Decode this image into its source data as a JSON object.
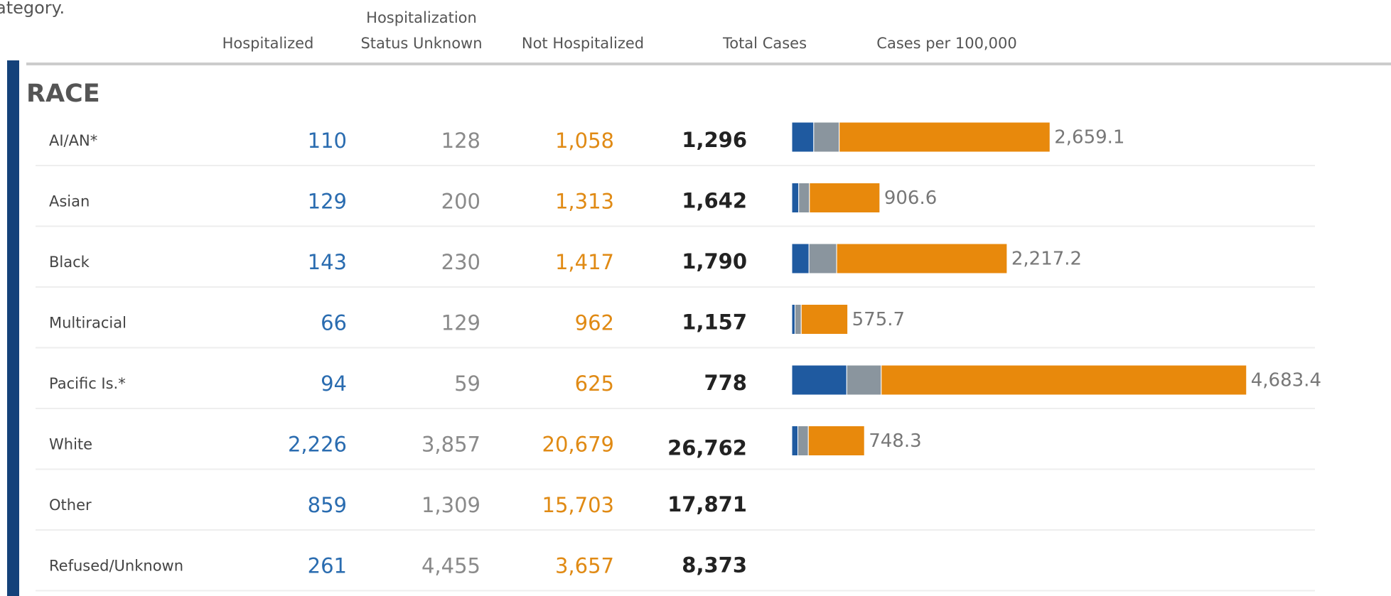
{
  "intro_text": "ategory.",
  "chart_data": {
    "type": "stacked-table-bar",
    "section": "RACE",
    "headers": [
      "Hospitalized",
      "Hospitalization Status Unknown",
      "Not Hospitalized",
      "Total Cases",
      "Cases per 100,000"
    ],
    "categories": [
      "AI/AN*",
      "Asian",
      "Black",
      "Multiracial",
      "Pacific Is.*",
      "White",
      "Other",
      "Refused/Unknown"
    ],
    "series": [
      {
        "name": "Hospitalized",
        "color": "#1f5aa0",
        "text_color": "#2a6cb0",
        "values": [
          110,
          129,
          143,
          66,
          94,
          2226,
          859,
          261
        ],
        "value_labels": [
          "110",
          "129",
          "143",
          "66",
          "94",
          "2,226",
          "859",
          "261"
        ]
      },
      {
        "name": "Hospitalization Status Unknown",
        "color": "#8a959e",
        "text_color": "#8a8a8a",
        "values": [
          128,
          200,
          230,
          129,
          59,
          3857,
          1309,
          4455
        ],
        "value_labels": [
          "128",
          "200",
          "230",
          "129",
          "59",
          "3,857",
          "1,309",
          "4,455"
        ]
      },
      {
        "name": "Not Hospitalized",
        "color": "#e8890c",
        "text_color": "#e08a14",
        "values": [
          1058,
          1313,
          1417,
          962,
          625,
          20679,
          15703,
          3657
        ],
        "value_labels": [
          "1,058",
          "1,313",
          "1,417",
          "962",
          "625",
          "20,679",
          "15,703",
          "3,657"
        ]
      }
    ],
    "totals": {
      "values": [
        1296,
        1642,
        1790,
        1157,
        778,
        26762,
        17871,
        8373
      ],
      "value_labels": [
        "1,296",
        "1,642",
        "1,790",
        "1,157",
        "778",
        "26,762",
        "17,871",
        "8,373"
      ]
    },
    "rates": {
      "values": [
        2659.1,
        906.6,
        2217.2,
        575.7,
        4683.4,
        748.3,
        null,
        null
      ],
      "value_labels": [
        "2,659.1",
        "906.6",
        "2,217.2",
        "575.7",
        "4,683.4",
        "748.3",
        null,
        null
      ]
    },
    "xlim": [
      0,
      5000
    ]
  }
}
